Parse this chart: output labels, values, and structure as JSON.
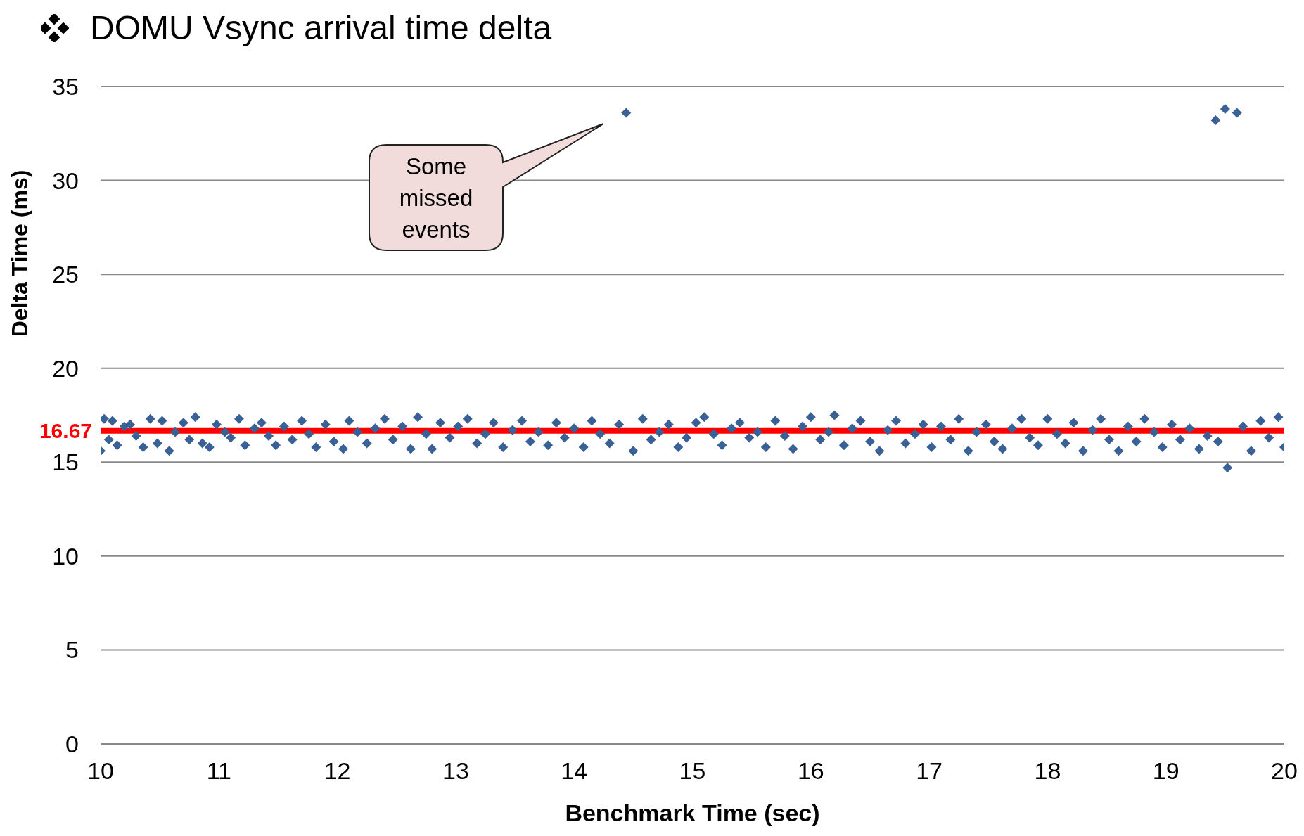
{
  "chart_data": {
    "type": "scatter",
    "title": "DOMU Vsync arrival time delta",
    "xlabel": "Benchmark Time (sec)",
    "ylabel": "Delta Time (ms)",
    "x": [
      10.0,
      10.03,
      10.07,
      10.1,
      10.14,
      10.2,
      10.25,
      10.3,
      10.36,
      10.42,
      10.48,
      10.52,
      10.58,
      10.63,
      10.7,
      10.75,
      10.8,
      10.86,
      10.92,
      10.98,
      11.05,
      11.1,
      11.17,
      11.22,
      11.3,
      11.36,
      11.42,
      11.48,
      11.55,
      11.62,
      11.7,
      11.76,
      11.82,
      11.9,
      11.97,
      12.05,
      12.1,
      12.17,
      12.25,
      12.32,
      12.4,
      12.47,
      12.55,
      12.62,
      12.68,
      12.75,
      12.8,
      12.87,
      12.95,
      13.02,
      13.1,
      13.18,
      13.25,
      13.32,
      13.4,
      13.48,
      13.56,
      13.63,
      13.7,
      13.78,
      13.85,
      13.92,
      14.0,
      14.08,
      14.15,
      14.22,
      14.3,
      14.38,
      14.44,
      14.5,
      14.58,
      14.65,
      14.72,
      14.8,
      14.88,
      14.95,
      15.03,
      15.1,
      15.18,
      15.25,
      15.33,
      15.4,
      15.48,
      15.55,
      15.62,
      15.7,
      15.78,
      15.85,
      15.93,
      16.0,
      16.08,
      16.15,
      16.2,
      16.28,
      16.35,
      16.42,
      16.5,
      16.58,
      16.65,
      16.72,
      16.8,
      16.88,
      16.95,
      17.02,
      17.1,
      17.18,
      17.25,
      17.33,
      17.4,
      17.48,
      17.55,
      17.62,
      17.7,
      17.78,
      17.85,
      17.92,
      18.0,
      18.08,
      18.15,
      18.22,
      18.3,
      18.38,
      18.45,
      18.52,
      18.6,
      18.68,
      18.75,
      18.82,
      18.9,
      18.97,
      19.05,
      19.12,
      19.2,
      19.28,
      19.35,
      19.42,
      19.44,
      19.5,
      19.52,
      19.6,
      19.65,
      19.72,
      19.8,
      19.87,
      19.95,
      20.0
    ],
    "values": [
      15.6,
      17.3,
      16.2,
      17.2,
      15.9,
      16.9,
      17.0,
      16.4,
      15.8,
      17.3,
      16.0,
      17.2,
      15.6,
      16.6,
      17.1,
      16.2,
      17.4,
      16.0,
      15.8,
      17.0,
      16.6,
      16.3,
      17.3,
      15.9,
      16.8,
      17.1,
      16.4,
      15.9,
      16.9,
      16.2,
      17.2,
      16.5,
      15.8,
      17.0,
      16.1,
      15.7,
      17.2,
      16.6,
      16.0,
      16.8,
      17.3,
      16.2,
      16.9,
      15.7,
      17.4,
      16.5,
      15.7,
      17.1,
      16.3,
      16.9,
      17.3,
      16.0,
      16.5,
      17.1,
      15.8,
      16.7,
      17.2,
      16.1,
      16.6,
      15.9,
      17.1,
      16.3,
      16.8,
      15.8,
      17.2,
      16.5,
      16.0,
      17.0,
      33.6,
      15.6,
      17.3,
      16.2,
      16.6,
      17.0,
      15.8,
      16.3,
      17.1,
      17.4,
      16.5,
      15.9,
      16.8,
      17.1,
      16.3,
      16.6,
      15.8,
      17.2,
      16.4,
      15.7,
      16.9,
      17.4,
      16.2,
      16.6,
      17.5,
      15.9,
      16.8,
      17.2,
      16.1,
      15.6,
      16.7,
      17.2,
      16.0,
      16.5,
      17.0,
      15.8,
      16.9,
      16.2,
      17.3,
      15.6,
      16.6,
      17.0,
      16.1,
      15.7,
      16.8,
      17.3,
      16.3,
      15.9,
      17.3,
      16.5,
      16.0,
      17.1,
      15.6,
      16.7,
      17.3,
      16.2,
      15.6,
      16.9,
      16.1,
      17.3,
      16.6,
      15.8,
      17.0,
      16.2,
      16.8,
      15.7,
      16.4,
      33.2,
      16.1,
      33.8,
      14.7,
      33.6,
      16.9,
      15.6,
      17.2,
      16.3,
      17.4,
      15.8
    ],
    "color": "#3a6196",
    "marker": "diamond",
    "xlim": [
      10,
      20
    ],
    "xticks": [
      10,
      11,
      12,
      13,
      14,
      15,
      16,
      17,
      18,
      19,
      20
    ],
    "ylim": [
      0,
      35
    ],
    "yticks": [
      0,
      5,
      10,
      15,
      20,
      25,
      30,
      35
    ],
    "grid": "y",
    "ref_lines": [
      {
        "axis": "y",
        "value": 16.67,
        "label": "16.67",
        "color": "#ff0000"
      }
    ],
    "annotations": [
      "Some missed events"
    ]
  }
}
